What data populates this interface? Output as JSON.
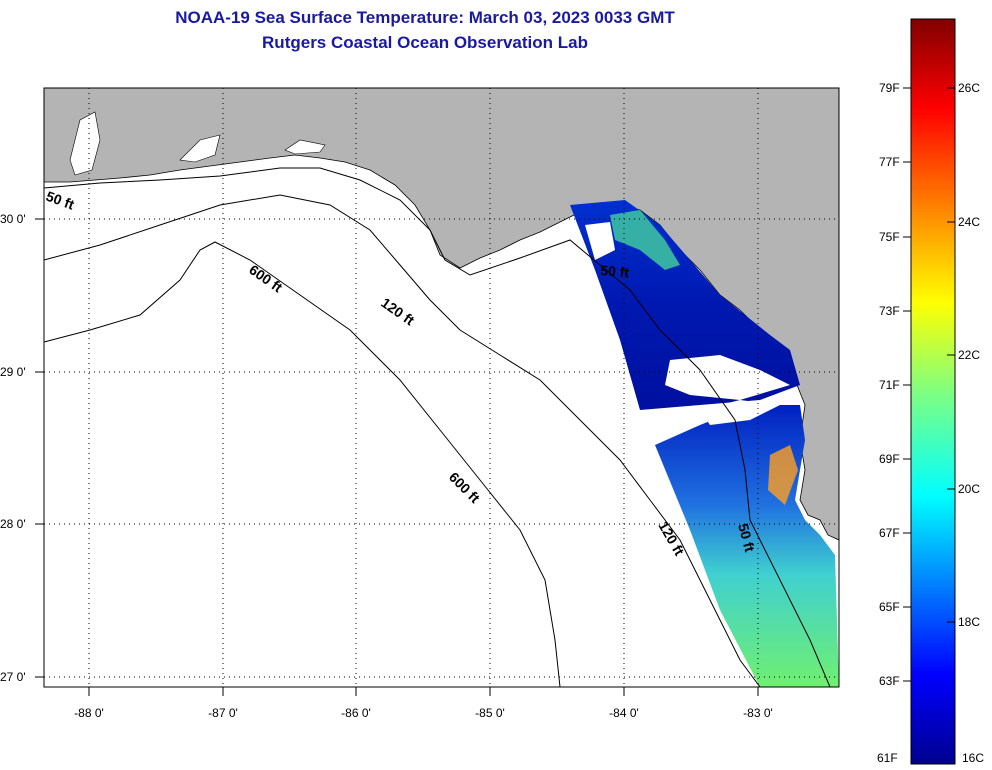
{
  "title": {
    "line1": "NOAA-19 Sea Surface Temperature:  March 03, 2023 0033 GMT",
    "line2": "Rutgers Coastal Ocean Observation Lab"
  },
  "axes": {
    "x_ticks": [
      "-88 0'",
      "-87 0'",
      "-86 0'",
      "-85 0'",
      "-84 0'",
      "-83 0'"
    ],
    "y_ticks": [
      "30 0'",
      "29 0'",
      "28 0'",
      "27 0'"
    ],
    "x_range": [
      -88.33,
      -82.46
    ],
    "y_range": [
      26.93,
      30.86
    ],
    "grid": "dotted"
  },
  "contours": {
    "labels": [
      "50 ft",
      "600 ft",
      "120 ft",
      "600 ft",
      "120 ft",
      "50 ft",
      "50 ft"
    ]
  },
  "colorbar": {
    "fahrenheit_ticks": [
      "79F",
      "77F",
      "75F",
      "73F",
      "71F",
      "69F",
      "67F",
      "65F",
      "63F",
      "61F"
    ],
    "celsius_ticks": [
      "26C",
      "24C",
      "22C",
      "20C",
      "18C",
      "16C"
    ],
    "min_label_f": "61F",
    "min_label_c": "16C",
    "colors": [
      "#00008f",
      "#0000ff",
      "#0080ff",
      "#00ffff",
      "#80ff80",
      "#ffff00",
      "#ff8000",
      "#ff0000",
      "#800000"
    ]
  },
  "colors": {
    "land": "#b4b4b4",
    "ocean": "#ffffff",
    "title": "#1a1aa0"
  }
}
